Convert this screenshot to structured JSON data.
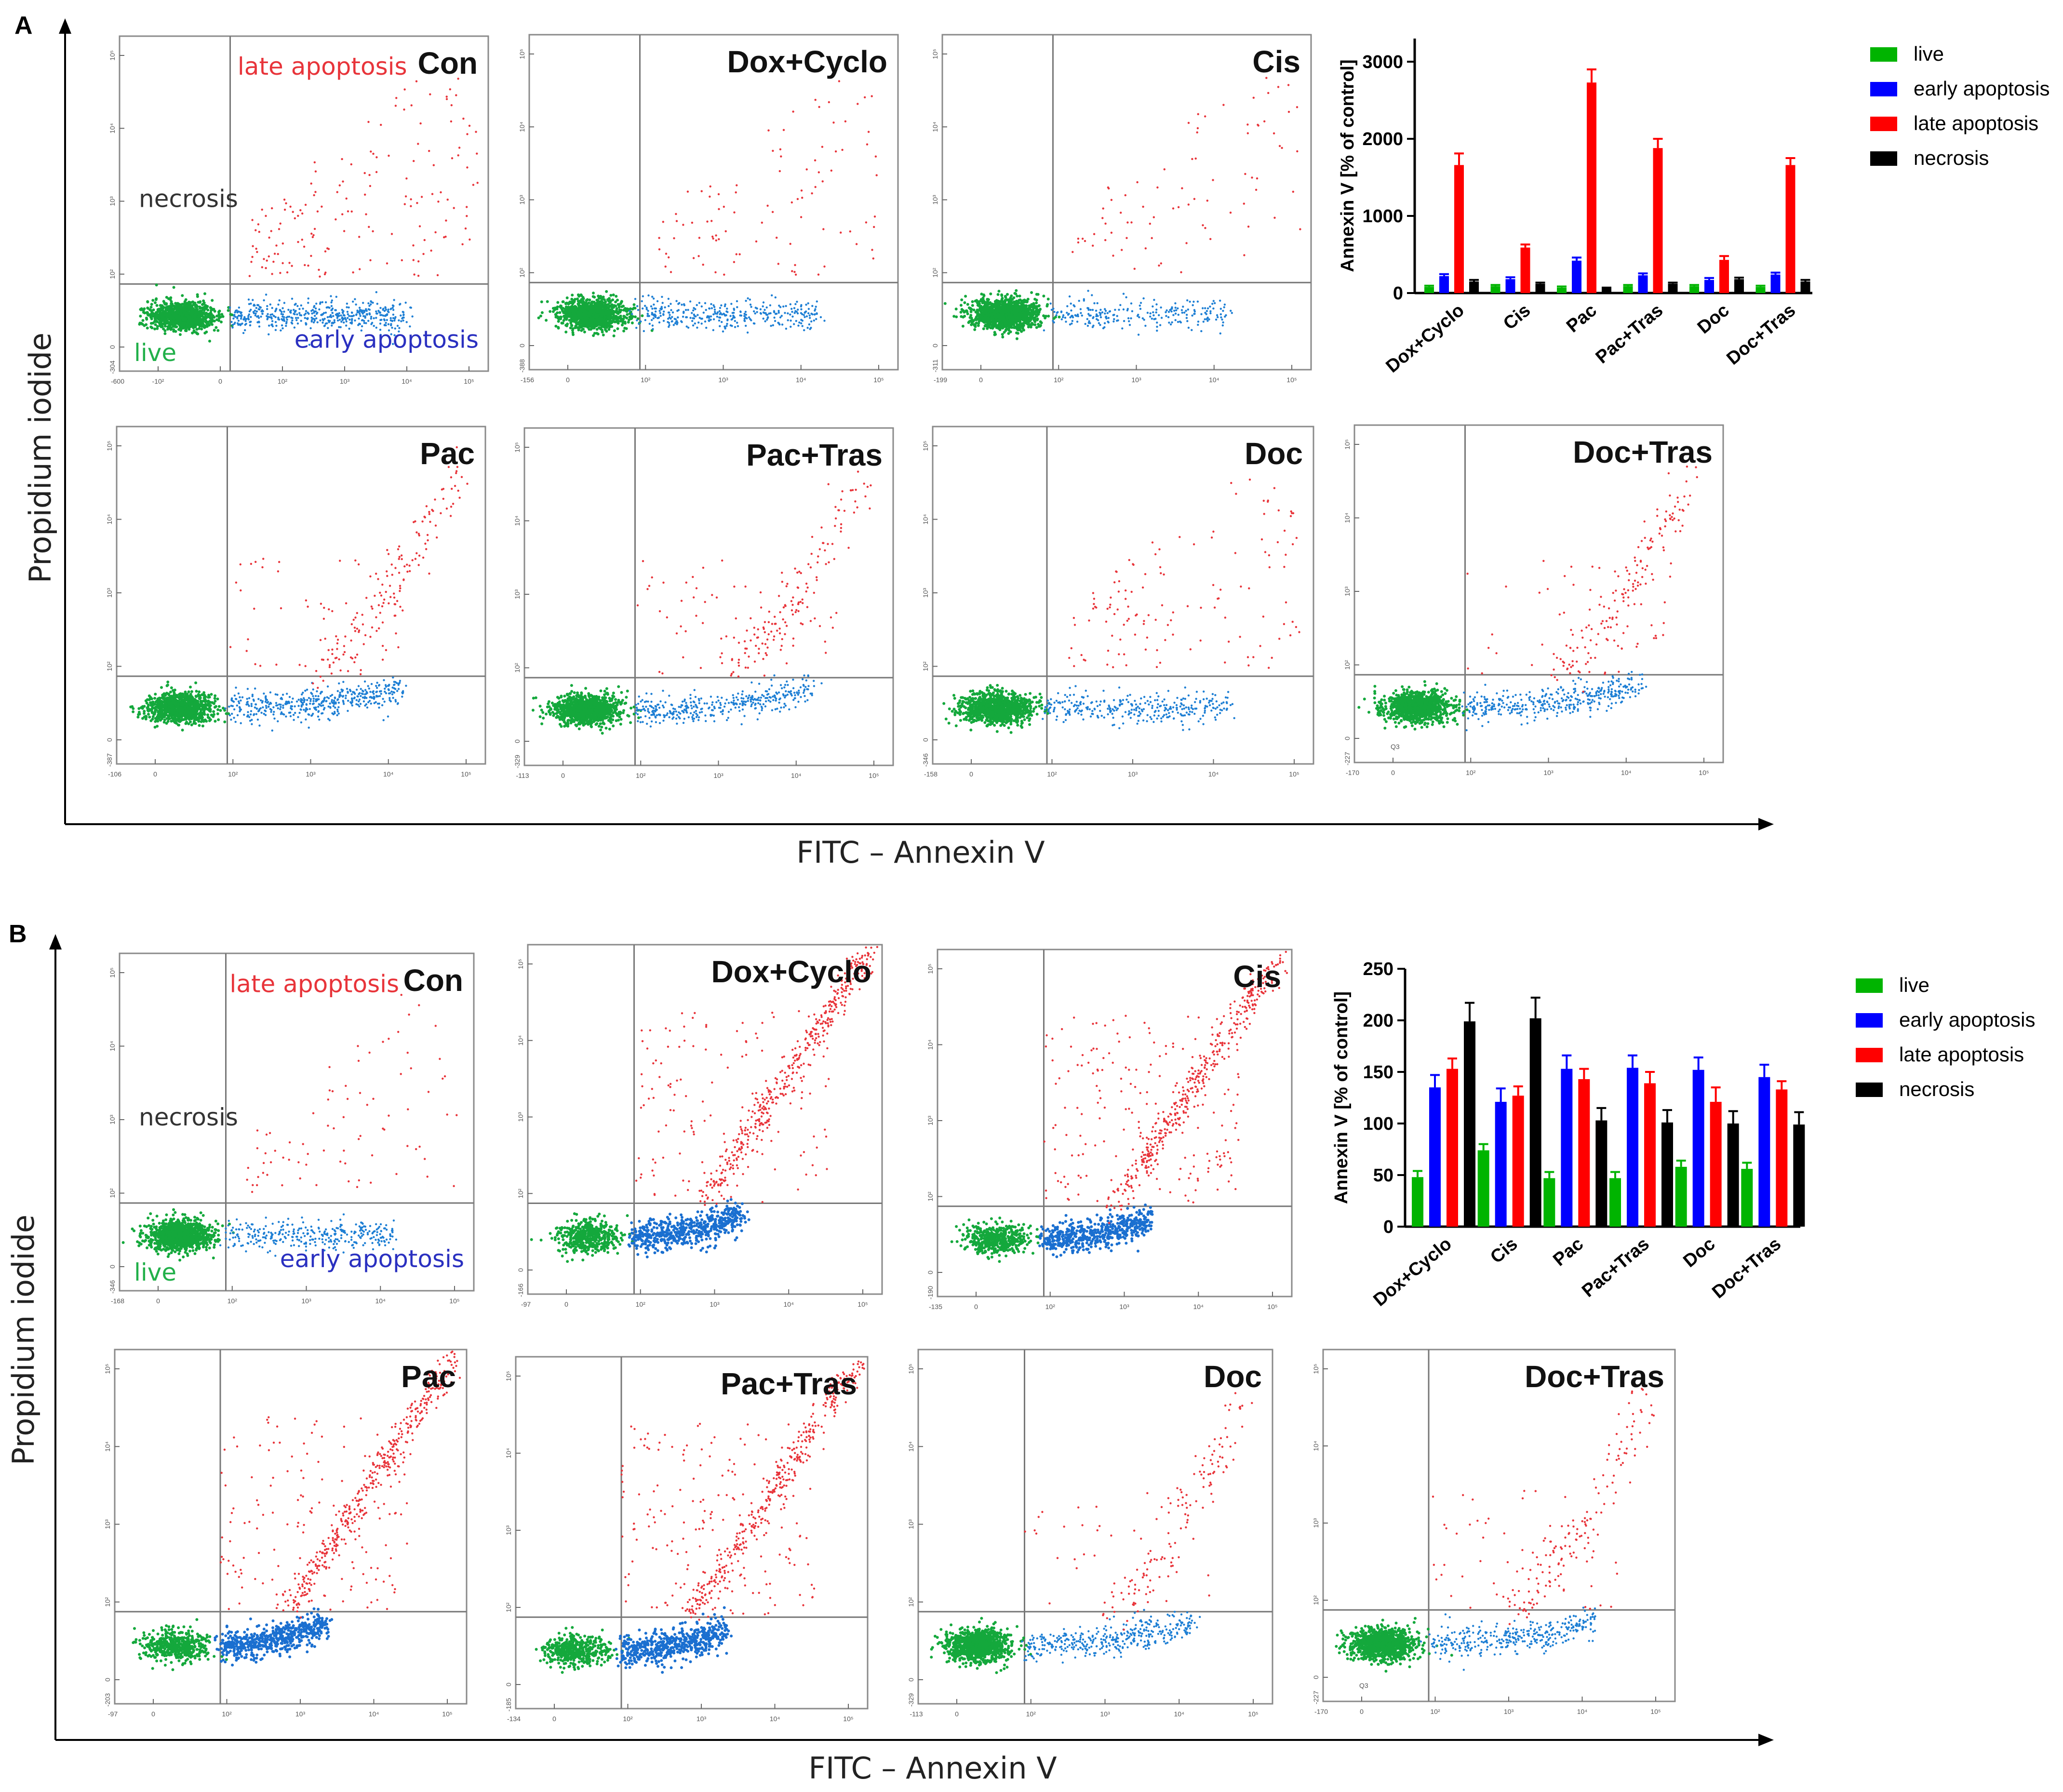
{
  "colors": {
    "live": "#00b400",
    "early": "#0000ff",
    "late": "#ff0000",
    "necrosis": "#000000",
    "dot_live": "#14a83c",
    "dot_early": "#1e7fd4",
    "dot_late": "#e8343a"
  },
  "panels": [
    {
      "label": "A",
      "x_axis_title": "FITC – Annexin V",
      "y_axis_title": "Propidium iodide",
      "quadrant_labels": {
        "late": "late apoptosis",
        "necrosis": "necrosis",
        "live": "live",
        "early": "early apoptosis"
      },
      "plots": [
        {
          "name": "Con",
          "dist": {
            "live": 0.6,
            "early": 0.3,
            "late": 0.1
          },
          "shape": "spread",
          "show_quadrant_labels": true,
          "ticks": {
            "ymin": "-304",
            "xmin": "-600",
            "x": [
              "-10²",
              "0",
              "10²",
              "10³",
              "10⁴",
              "10⁵"
            ],
            "y": [
              "10⁵",
              "10⁴",
              "10³",
              "10²",
              "0"
            ]
          }
        },
        {
          "name": "Dox+Cyclo",
          "dist": {
            "live": 0.72,
            "early": 0.22,
            "late": 0.06
          },
          "shape": "spread",
          "show_quadrant_labels": false,
          "ticks": {
            "ymin": "-388",
            "xmin": "-156",
            "x": [
              "0",
              "10²",
              "10³",
              "10⁴",
              "10⁵"
            ],
            "y": [
              "10⁵",
              "10⁴",
              "10³",
              "10²",
              "0"
            ]
          }
        },
        {
          "name": "Cis",
          "dist": {
            "live": 0.8,
            "early": 0.15,
            "late": 0.05
          },
          "shape": "spread",
          "show_quadrant_labels": false,
          "ticks": {
            "ymin": "-311",
            "xmin": "-199",
            "x": [
              "0",
              "10²",
              "10³",
              "10⁴",
              "10⁵"
            ],
            "y": [
              "10⁵",
              "10⁴",
              "10³",
              "10²",
              "0"
            ]
          }
        },
        {
          "name": "Pac",
          "dist": {
            "live": 0.6,
            "early": 0.28,
            "late": 0.12
          },
          "shape": "curve",
          "show_quadrant_labels": false,
          "ticks": {
            "ymin": "-387",
            "xmin": "-106",
            "x": [
              "0",
              "10²",
              "10³",
              "10⁴",
              "10⁵"
            ],
            "y": [
              "10⁵",
              "10⁴",
              "10³",
              "10²",
              "0"
            ]
          }
        },
        {
          "name": "Pac+Tras",
          "dist": {
            "live": 0.65,
            "early": 0.23,
            "late": 0.12
          },
          "shape": "curve",
          "show_quadrant_labels": false,
          "ticks": {
            "ymin": "-329",
            "xmin": "-113",
            "x": [
              "0",
              "10²",
              "10³",
              "10⁴",
              "10⁵"
            ],
            "y": [
              "10⁵",
              "10⁴",
              "10³",
              "10²",
              "0"
            ]
          }
        },
        {
          "name": "Doc",
          "dist": {
            "live": 0.72,
            "early": 0.2,
            "late": 0.08
          },
          "shape": "spread",
          "show_quadrant_labels": false,
          "ticks": {
            "ymin": "-346",
            "xmin": "-158",
            "x": [
              "0",
              "10²",
              "10³",
              "10⁴",
              "10⁵"
            ],
            "y": [
              "10⁵",
              "10⁴",
              "10³",
              "10²",
              "0"
            ]
          }
        },
        {
          "name": "Doc+Tras",
          "dist": {
            "live": 0.64,
            "early": 0.24,
            "late": 0.12
          },
          "shape": "curve",
          "show_quadrant_labels": false,
          "gate_label": "Q3",
          "ticks": {
            "ymin": "-227",
            "xmin": "-170",
            "x": [
              "0",
              "10²",
              "10³",
              "10⁴",
              "10⁵"
            ],
            "y": [
              "10⁵",
              "10⁴",
              "10³",
              "10²",
              "0"
            ]
          }
        }
      ]
    },
    {
      "label": "B",
      "x_axis_title": "FITC – Annexin V",
      "y_axis_title": "Propidium iodide",
      "quadrant_labels": {
        "late": "late apoptosis",
        "necrosis": "necrosis",
        "live": "live",
        "early": "early apoptosis"
      },
      "plots": [
        {
          "name": "Con",
          "dist": {
            "live": 0.75,
            "early": 0.2,
            "late": 0.05
          },
          "shape": "spread",
          "show_quadrant_labels": true,
          "ticks": {
            "ymin": "-346",
            "xmin": "-168",
            "x": [
              "0",
              "10²",
              "10³",
              "10⁴",
              "10⁵"
            ],
            "y": [
              "10⁵",
              "10⁴",
              "10³",
              "10²",
              "0"
            ]
          }
        },
        {
          "name": "Dox+Cyclo",
          "dist": {
            "live": 0.3,
            "early": 0.35,
            "late": 0.35
          },
          "shape": "heavy",
          "show_quadrant_labels": false,
          "ticks": {
            "ymin": "-166",
            "xmin": "-97",
            "x": [
              "0",
              "10²",
              "10³",
              "10⁴",
              "10⁵"
            ],
            "y": [
              "10⁵",
              "10⁴",
              "10³",
              "10²",
              "0"
            ]
          }
        },
        {
          "name": "Cis",
          "dist": {
            "live": 0.3,
            "early": 0.33,
            "late": 0.37
          },
          "shape": "heavy",
          "show_quadrant_labels": false,
          "ticks": {
            "ymin": "-190",
            "xmin": "-135",
            "x": [
              "0",
              "10²",
              "10³",
              "10⁴",
              "10⁵"
            ],
            "y": [
              "10⁵",
              "10⁴",
              "10³",
              "10²",
              "0"
            ]
          }
        },
        {
          "name": "Pac",
          "dist": {
            "live": 0.3,
            "early": 0.35,
            "late": 0.35
          },
          "shape": "heavy",
          "show_quadrant_labels": false,
          "ticks": {
            "ymin": "-203",
            "xmin": "-97",
            "x": [
              "0",
              "10²",
              "10³",
              "10⁴",
              "10⁵"
            ],
            "y": [
              "10⁵",
              "10⁴",
              "10³",
              "10²",
              "0"
            ]
          }
        },
        {
          "name": "Pac+Tras",
          "dist": {
            "live": 0.3,
            "early": 0.35,
            "late": 0.35
          },
          "shape": "heavy",
          "show_quadrant_labels": false,
          "ticks": {
            "ymin": "-185",
            "xmin": "-134",
            "x": [
              "0",
              "10²",
              "10³",
              "10⁴",
              "10⁵"
            ],
            "y": [
              "10⁵",
              "10⁴",
              "10³",
              "10²",
              "0"
            ]
          }
        },
        {
          "name": "Doc",
          "dist": {
            "live": 0.66,
            "early": 0.24,
            "late": 0.1
          },
          "shape": "curve",
          "show_quadrant_labels": false,
          "ticks": {
            "ymin": "-329",
            "xmin": "-113",
            "x": [
              "0",
              "10²",
              "10³",
              "10⁴",
              "10⁵"
            ],
            "y": [
              "10⁵",
              "10⁴",
              "10³",
              "10²",
              "0"
            ]
          }
        },
        {
          "name": "Doc+Tras",
          "dist": {
            "live": 0.66,
            "early": 0.22,
            "late": 0.12
          },
          "shape": "curve",
          "show_quadrant_labels": false,
          "gate_label": "Q3",
          "ticks": {
            "ymin": "-227",
            "xmin": "-170",
            "x": [
              "0",
              "10²",
              "10³",
              "10⁴",
              "10⁵"
            ],
            "y": [
              "10⁵",
              "10⁴",
              "10³",
              "10²",
              "0"
            ]
          }
        }
      ]
    }
  ],
  "chart_data": [
    {
      "type": "bar",
      "panel": "A",
      "title": "",
      "xlabel": "",
      "ylabel": "Annexin V [% of control]",
      "ylim": [
        0,
        3300
      ],
      "yticks": [
        0,
        1000,
        2000,
        3000
      ],
      "categories": [
        "Dox+Cyclo",
        "Cis",
        "Pac",
        "Pac+Tras",
        "Doc",
        "Doc+Tras"
      ],
      "legend_position": "top-right",
      "series": [
        {
          "name": "live",
          "color": "#00b400",
          "values": [
            80,
            90,
            70,
            90,
            90,
            80
          ],
          "errors": [
            15,
            15,
            15,
            15,
            15,
            15
          ]
        },
        {
          "name": "early apoptosis",
          "color": "#0000ff",
          "values": [
            220,
            180,
            420,
            230,
            170,
            240
          ],
          "errors": [
            25,
            25,
            40,
            25,
            25,
            25
          ]
        },
        {
          "name": "late apoptosis",
          "color": "#ff0000",
          "values": [
            1660,
            590,
            2730,
            1880,
            430,
            1660
          ],
          "errors": [
            150,
            40,
            170,
            120,
            50,
            90
          ]
        },
        {
          "name": "necrosis",
          "color": "#000000",
          "values": [
            150,
            120,
            60,
            120,
            180,
            150
          ],
          "errors": [
            20,
            15,
            10,
            15,
            20,
            20
          ]
        }
      ]
    },
    {
      "type": "bar",
      "panel": "B",
      "title": "",
      "xlabel": "",
      "ylabel": "Annexin V [% of control]",
      "ylim": [
        0,
        250
      ],
      "yticks": [
        0,
        50,
        100,
        150,
        200,
        250
      ],
      "categories": [
        "Dox+Cyclo",
        "Cis",
        "Pac",
        "Pac+Tras",
        "Doc",
        "Doc+Tras"
      ],
      "legend_position": "top-right",
      "series": [
        {
          "name": "live",
          "color": "#00b400",
          "values": [
            48,
            74,
            47,
            47,
            58,
            56
          ],
          "errors": [
            6,
            6,
            6,
            6,
            6,
            6
          ]
        },
        {
          "name": "early apoptosis",
          "color": "#0000ff",
          "values": [
            135,
            121,
            153,
            154,
            152,
            145
          ],
          "errors": [
            12,
            13,
            13,
            12,
            12,
            12
          ]
        },
        {
          "name": "late apoptosis",
          "color": "#ff0000",
          "values": [
            153,
            127,
            143,
            139,
            121,
            133
          ],
          "errors": [
            10,
            9,
            10,
            11,
            14,
            8
          ]
        },
        {
          "name": "necrosis",
          "color": "#000000",
          "values": [
            199,
            202,
            103,
            101,
            100,
            99
          ],
          "errors": [
            18,
            20,
            12,
            12,
            12,
            12
          ]
        }
      ]
    }
  ]
}
